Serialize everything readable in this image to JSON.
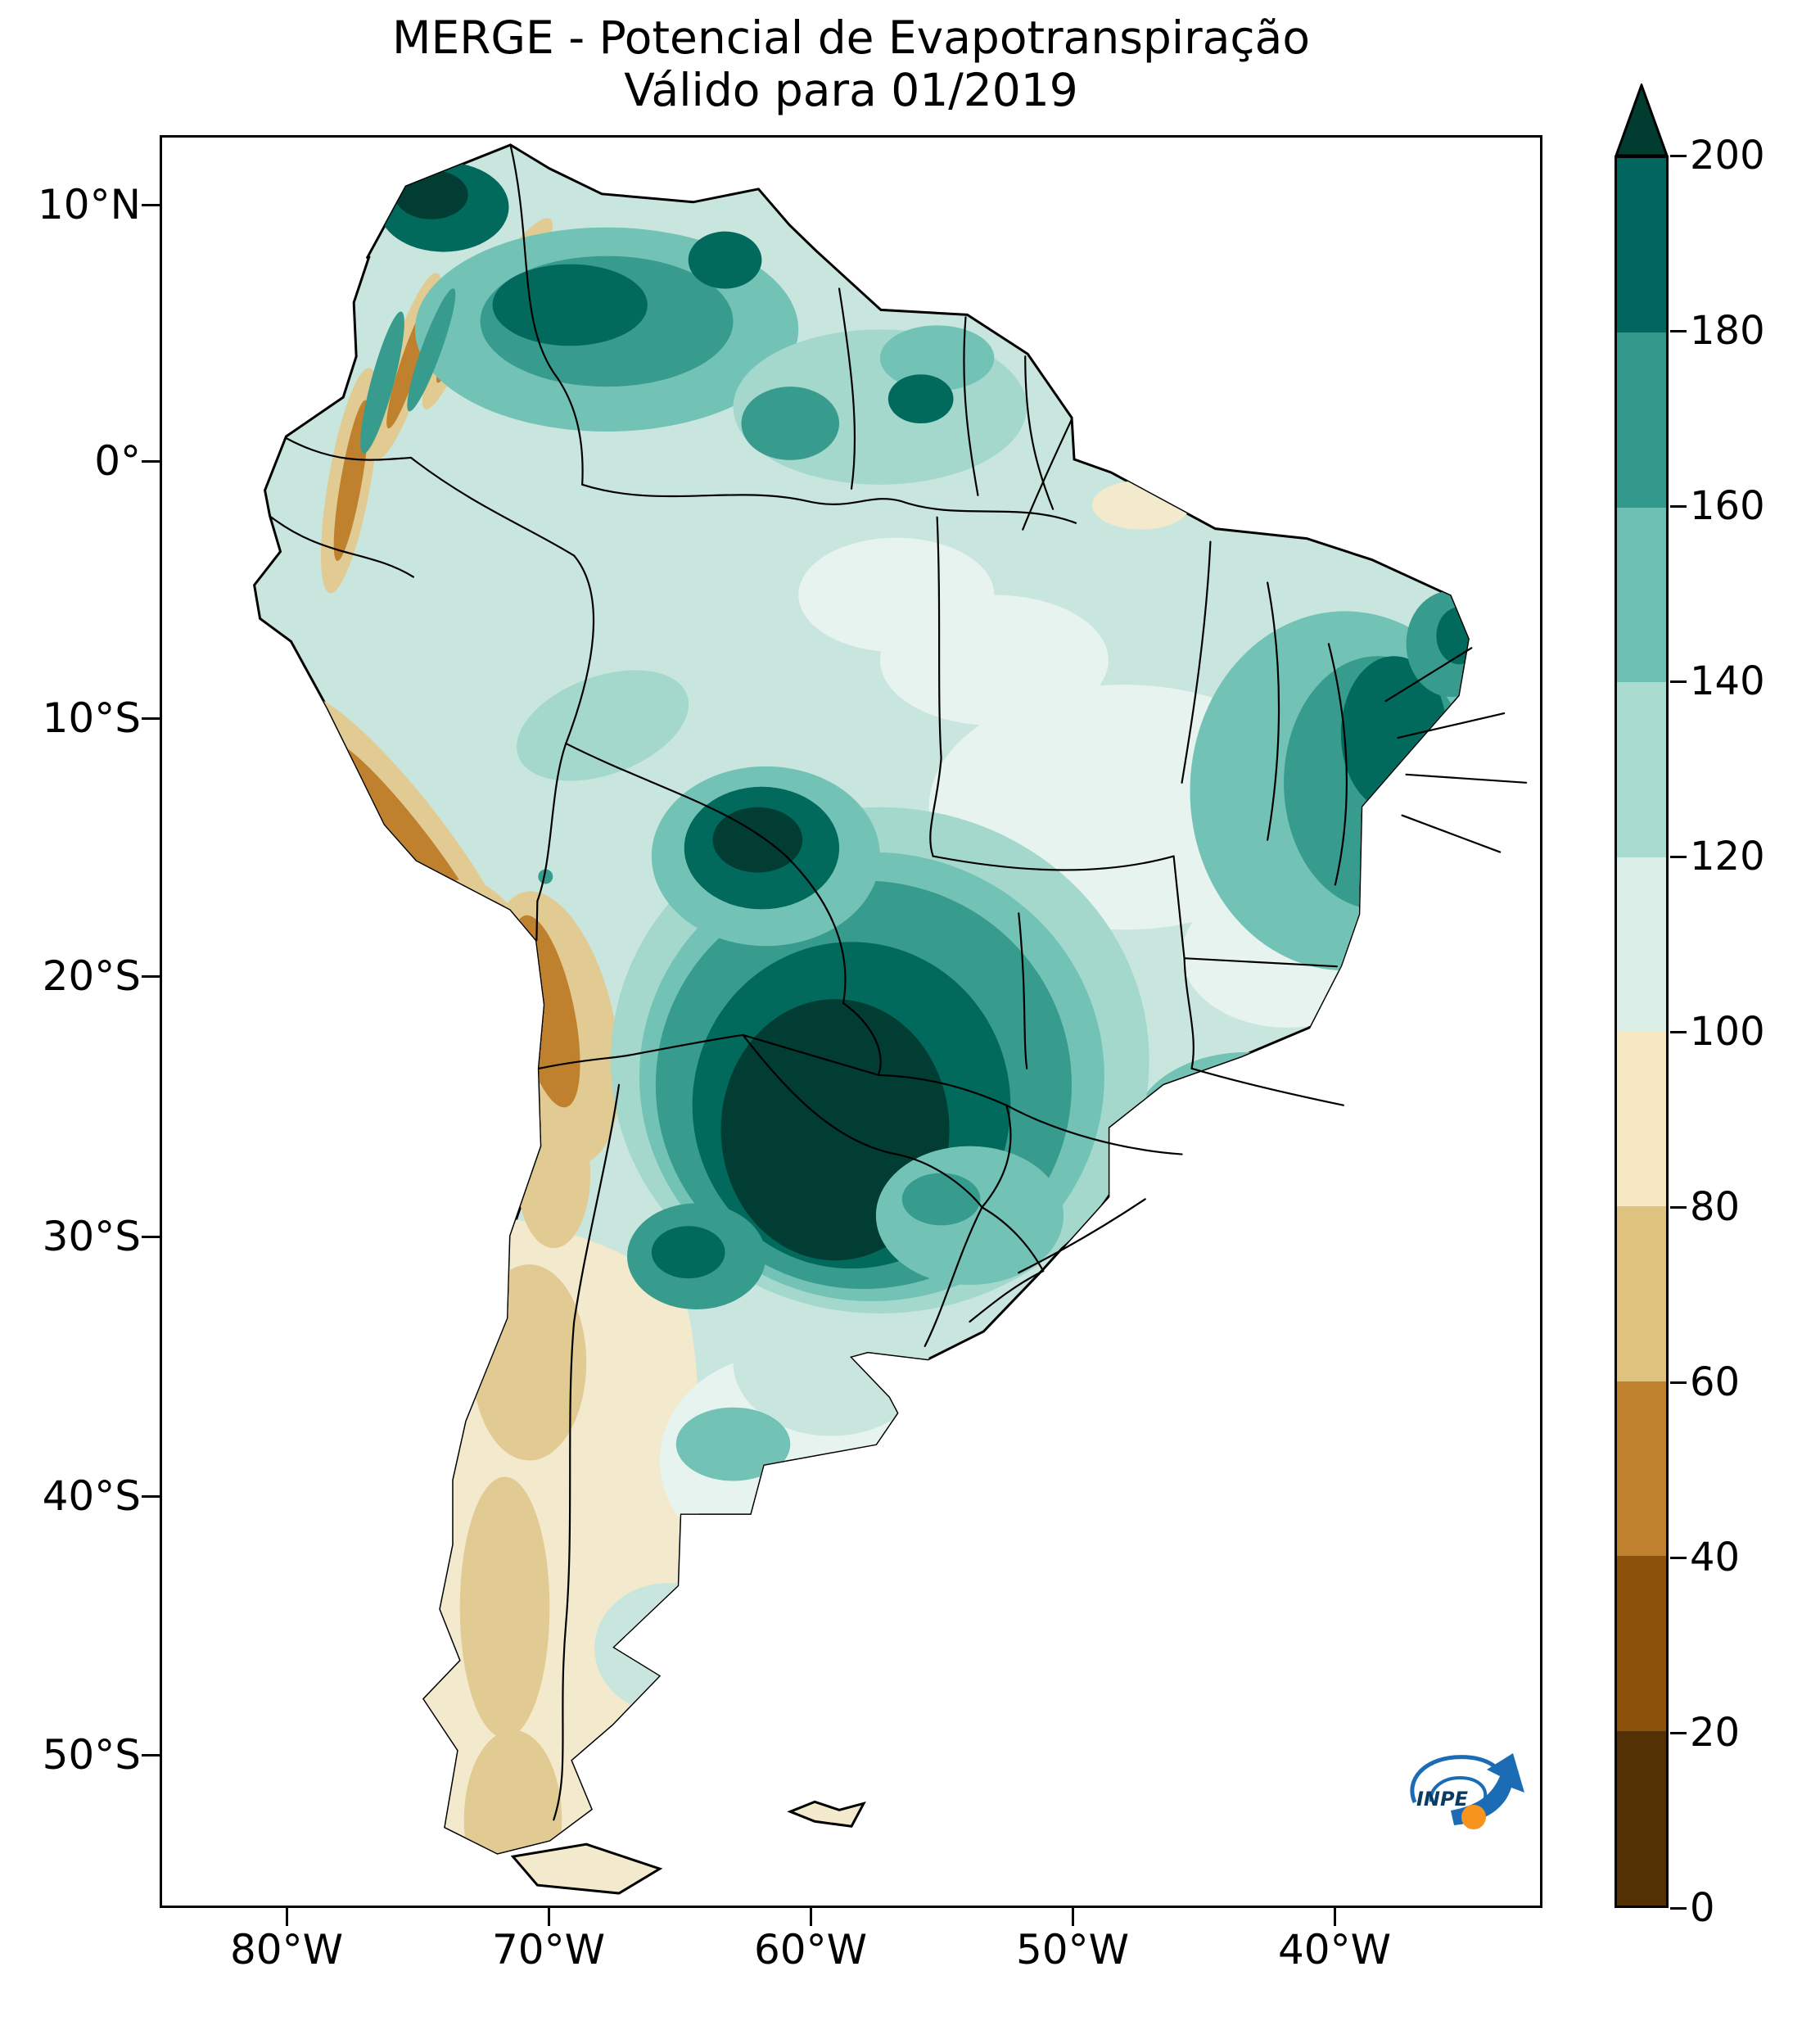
{
  "title": {
    "line1": "MERGE - Potencial de Evapotranspiração",
    "line2": "Válido para 01/2019"
  },
  "axes": {
    "lat_ticks": [
      "10°N",
      "0°",
      "10°S",
      "20°S",
      "30°S",
      "40°S",
      "50°S"
    ],
    "lon_ticks": [
      "80°W",
      "70°W",
      "60°W",
      "50°W",
      "40°W"
    ]
  },
  "colorbar": {
    "tick_labels": [
      "0",
      "20",
      "40",
      "60",
      "80",
      "100",
      "120",
      "140",
      "160",
      "180",
      "200"
    ],
    "segment_colors_bottom_to_top": [
      "#543005",
      "#8c510a",
      "#bf812d",
      "#dfc27d",
      "#f6e8c3",
      "#dbeee8",
      "#a9dbd1",
      "#6cbfb2",
      "#33998c",
      "#01665e"
    ],
    "extend_max_color": "#003c30"
  },
  "colors": {
    "land_base": "#c9e6de",
    "mint": "#e6f3ee",
    "teal_light": "#a4d8cd",
    "teal_med": "#72c2b5",
    "teal": "#379b8e",
    "teal_dark": "#016a5d",
    "teal_darkest": "#013d33",
    "cream": "#f3e9cd",
    "sand": "#e1cb93",
    "brown": "#bf812d",
    "brown_dark": "#8c510a"
  },
  "logo": {
    "text": "INPE",
    "blue": "#1b6cb5",
    "dark_blue": "#0b3a63",
    "orange": "#f7941d"
  },
  "chart_data": {
    "type": "heatmap",
    "title": "MERGE - Potencial de Evapotranspiração",
    "subtitle": "Válido para 01/2019",
    "region_shown": "South America",
    "x_ticks": [
      "80°W",
      "70°W",
      "60°W",
      "50°W",
      "40°W"
    ],
    "y_ticks": [
      "10°N",
      "0°",
      "10°S",
      "20°S",
      "30°S",
      "40°S",
      "50°S"
    ],
    "colorbar_levels": [
      0,
      20,
      40,
      60,
      80,
      100,
      120,
      140,
      160,
      180,
      200
    ],
    "colorbar_extend": "max",
    "legend_position": "right",
    "palette_description": "brown (low values) through cream to dark teal (high values)"
  }
}
